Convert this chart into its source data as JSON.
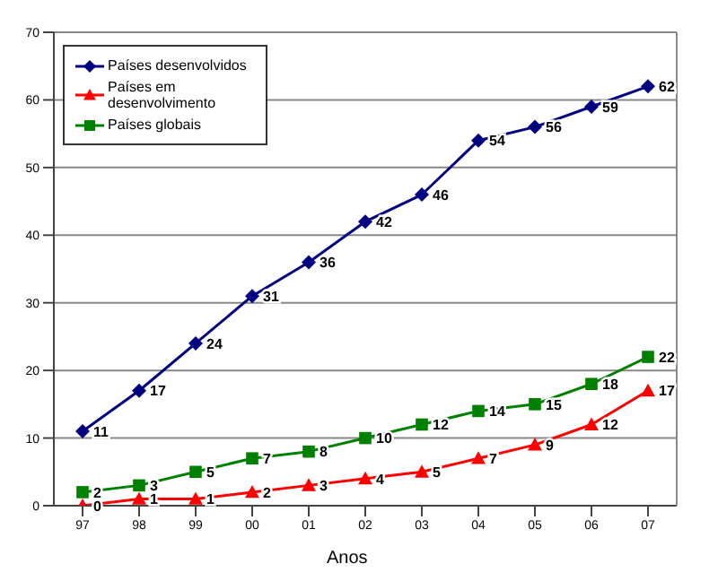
{
  "chart_data": {
    "type": "line",
    "xlabel": "Anos",
    "categories": [
      "97",
      "98",
      "99",
      "00",
      "01",
      "02",
      "03",
      "04",
      "05",
      "06",
      "07"
    ],
    "series": [
      {
        "name": "Países desenvolvidos",
        "color": "#000080",
        "marker": "diamond",
        "values": [
          11,
          17,
          24,
          31,
          36,
          42,
          46,
          54,
          56,
          59,
          62
        ]
      },
      {
        "name": "Países em desenvolvimento",
        "color": "#ff0000",
        "marker": "triangle",
        "values": [
          0,
          1,
          1,
          2,
          3,
          4,
          5,
          7,
          9,
          12,
          17
        ]
      },
      {
        "name": "Países globais",
        "color": "#008000",
        "marker": "square",
        "values": [
          2,
          3,
          5,
          7,
          8,
          10,
          12,
          14,
          15,
          18,
          22
        ]
      }
    ],
    "ylim": [
      0,
      70
    ],
    "yticks": [
      0,
      10,
      20,
      30,
      40,
      50,
      60,
      70
    ],
    "grid": "y",
    "legend": "top left",
    "data_labels": true
  }
}
